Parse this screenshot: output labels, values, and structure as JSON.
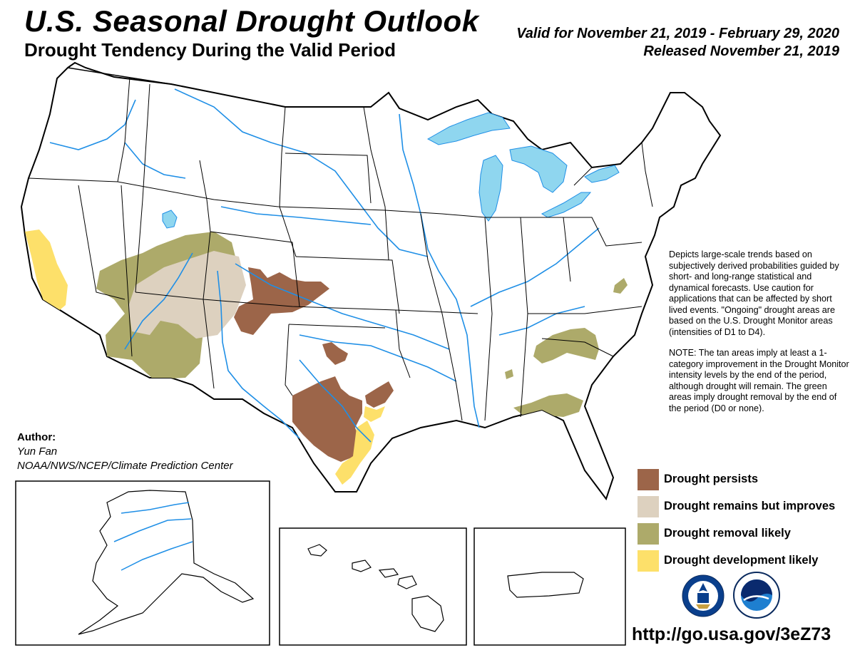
{
  "header": {
    "title": "U.S. Seasonal Drought Outlook",
    "subtitle": "Drought Tendency During the Valid Period",
    "valid_for": "Valid for November 21, 2019 - February 29, 2020",
    "released": "Released November 21, 2019"
  },
  "notes": {
    "paragraph1": "Depicts large-scale trends based on subjectively derived probabilities guided by short- and long-range statistical and dynamical forecasts. Use caution for applications that can be affected by short lived events. \"Ongoing\" drought areas are based on the U.S. Drought Monitor areas (intensities of D1 to D4).",
    "paragraph2": "NOTE: The tan areas imply at least a 1-category improvement in the Drought Monitor intensity levels by the end of the period, although drought will remain. The green areas imply drought removal by the end of the period (D0 or none)."
  },
  "author": {
    "label": "Author:",
    "name": "Yun Fan",
    "organization": "NOAA/NWS/NCEP/Climate Prediction Center"
  },
  "legend": {
    "items": [
      {
        "label": "Drought persists",
        "color": "#9c6549"
      },
      {
        "label": "Drought remains but improves",
        "color": "#ddd1bf"
      },
      {
        "label": "Drought removal likely",
        "color": "#adaa6a"
      },
      {
        "label": "Drought development likely",
        "color": "#fde06a"
      }
    ]
  },
  "colors": {
    "water": "#8fd6ef",
    "river": "#1f8fe6",
    "boundary": "#000000"
  },
  "footer": {
    "url": "http://go.usa.gov/3eZ73"
  },
  "logos": {
    "nws_icon": "nws-logo-icon",
    "noaa_icon": "noaa-logo-icon"
  }
}
